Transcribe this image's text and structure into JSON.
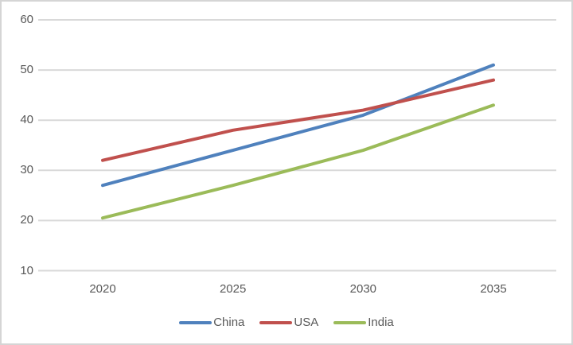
{
  "chart_data": {
    "type": "line",
    "categories": [
      "2020",
      "2025",
      "2030",
      "2035"
    ],
    "series": [
      {
        "name": "China",
        "values": [
          27,
          34,
          41,
          51
        ],
        "color": "#4F81BD"
      },
      {
        "name": "USA",
        "values": [
          32,
          38,
          42,
          48
        ],
        "color": "#C0504D"
      },
      {
        "name": "India",
        "values": [
          20.5,
          27,
          34,
          43
        ],
        "color": "#9BBB59"
      }
    ],
    "ylim": [
      10,
      60
    ],
    "yticks": [
      60,
      50,
      40,
      30,
      20,
      10
    ],
    "grid": true,
    "legend_position": "bottom"
  },
  "legend": {
    "items": [
      {
        "label": "China"
      },
      {
        "label": "USA"
      },
      {
        "label": "India"
      }
    ]
  },
  "colors": {
    "background": "#FFFFFF",
    "frame_border": "#D5D5D5",
    "gridline": "#D9D9D9",
    "axis_text": "#595959"
  }
}
